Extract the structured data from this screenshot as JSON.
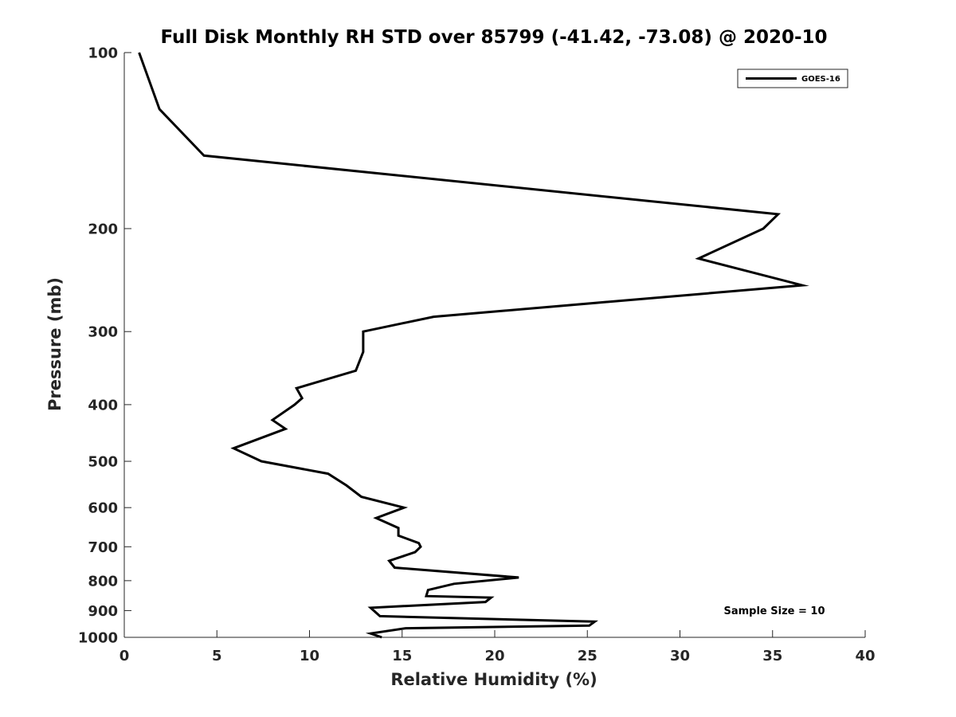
{
  "chart_data": {
    "type": "line",
    "title": "Full Disk Monthly RH STD over 85799 (-41.42, -73.08) @ 2020-10",
    "xlabel": "Relative Humidity (%)",
    "ylabel": "Pressure (mb)",
    "xlim": [
      0,
      40
    ],
    "ylim": [
      100,
      1000
    ],
    "y_scale": "log",
    "y_reversed": true,
    "grid": false,
    "legend_position": "top-right",
    "x_ticks": [
      0,
      5,
      10,
      15,
      20,
      25,
      30,
      35,
      40
    ],
    "y_ticks": [
      100,
      200,
      300,
      400,
      500,
      600,
      700,
      800,
      900,
      1000
    ],
    "series": [
      {
        "name": "GOES-16",
        "color": "#000000",
        "x": [
          0.8,
          1.9,
          4.3,
          35.3,
          34.5,
          31.0,
          36.6,
          16.7,
          12.9,
          12.9,
          12.5,
          9.3,
          9.6,
          9.2,
          8.0,
          8.7,
          5.9,
          7.4,
          7.4,
          11.0,
          12.0,
          12.8,
          15.1,
          13.6,
          14.8,
          14.8,
          15.9,
          16.0,
          15.7,
          14.3,
          14.6,
          21.3,
          17.8,
          16.4,
          16.3,
          19.8,
          19.5,
          13.3,
          13.8,
          25.4,
          25.1,
          15.2,
          13.3,
          13.9
        ],
        "y": [
          100,
          125,
          150,
          189,
          200,
          225,
          250,
          283,
          300,
          325,
          350,
          375,
          390,
          400,
          425,
          440,
          475,
          500,
          500,
          525,
          550,
          575,
          600,
          625,
          650,
          670,
          690,
          700,
          715,
          740,
          760,
          790,
          810,
          830,
          850,
          855,
          870,
          890,
          920,
          940,
          955,
          965,
          985,
          1000
        ]
      }
    ],
    "annotation": "Sample Size = 10"
  }
}
